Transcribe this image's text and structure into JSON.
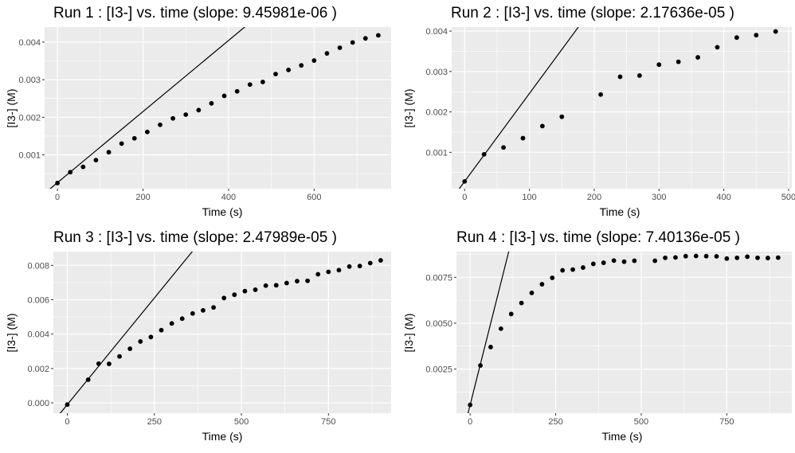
{
  "chart_data": [
    {
      "type": "scatter",
      "title": "Run  1 : [I3-] vs. time (slope:  9.45981e-06 )",
      "xlabel": "Time (s)",
      "ylabel": "[I3-] (M)",
      "xlim": [
        -30,
        780
      ],
      "ylim": [
        0.0001,
        0.0044
      ],
      "xticks": [
        0,
        200,
        400,
        600
      ],
      "yticks": [
        0.001,
        0.002,
        0.003,
        0.004
      ],
      "ytick_labels": [
        "0.001",
        "0.002",
        "0.003",
        "0.004"
      ],
      "grid": true,
      "points": {
        "x": [
          0,
          30,
          60,
          90,
          120,
          150,
          180,
          210,
          240,
          270,
          300,
          330,
          360,
          390,
          420,
          450,
          480,
          510,
          540,
          570,
          600,
          630,
          660,
          690,
          720,
          750
        ],
        "y": [
          0.00025,
          0.00054,
          0.00068,
          0.00086,
          0.00107,
          0.0013,
          0.00144,
          0.00161,
          0.0018,
          0.00197,
          0.00207,
          0.00219,
          0.00237,
          0.00257,
          0.00269,
          0.00287,
          0.00294,
          0.00315,
          0.00326,
          0.00338,
          0.00351,
          0.0037,
          0.00385,
          0.00399,
          0.0041,
          0.00418
        ]
      },
      "fit_line": {
        "slope": 9.45981e-06,
        "intercept": 0.00026
      }
    },
    {
      "type": "scatter",
      "title": "Run  2 : [I3-] vs. time (slope:  2.17636e-05 )",
      "xlabel": "Time (s)",
      "ylabel": "[I3-] (M)",
      "xlim": [
        -20,
        505
      ],
      "ylim": [
        0.0001,
        0.0041
      ],
      "xticks": [
        0,
        100,
        200,
        300,
        400,
        500
      ],
      "yticks": [
        0.001,
        0.002,
        0.003,
        0.004
      ],
      "ytick_labels": [
        "0.001",
        "0.002",
        "0.003",
        "0.004"
      ],
      "grid": true,
      "points": {
        "x": [
          0,
          30,
          60,
          90,
          120,
          150,
          210,
          240,
          270,
          300,
          330,
          360,
          390,
          420,
          450,
          480
        ],
        "y": [
          0.00028,
          0.00095,
          0.00112,
          0.00135,
          0.00165,
          0.00188,
          0.00243,
          0.00287,
          0.0029,
          0.00317,
          0.00324,
          0.00335,
          0.0036,
          0.00384,
          0.0039,
          0.00399
        ]
      },
      "fit_line": {
        "slope": 2.17636e-05,
        "intercept": 0.00028
      }
    },
    {
      "type": "scatter",
      "title": "Run  3 : [I3-] vs. time (slope:  2.47989e-05 )",
      "xlabel": "Time (s)",
      "ylabel": "[I3-] (M)",
      "xlim": [
        -40,
        930
      ],
      "ylim": [
        -0.0006,
        0.0088
      ],
      "xticks": [
        0,
        250,
        500,
        750
      ],
      "yticks": [
        0,
        0.002,
        0.004,
        0.006,
        0.008
      ],
      "ytick_labels": [
        "0.000",
        "0.002",
        "0.004",
        "0.006",
        "0.008"
      ],
      "grid": true,
      "points": {
        "x": [
          0,
          60,
          90,
          120,
          150,
          180,
          210,
          240,
          270,
          300,
          330,
          360,
          390,
          420,
          450,
          480,
          510,
          540,
          570,
          600,
          630,
          660,
          690,
          720,
          750,
          780,
          810,
          840,
          870,
          900
        ],
        "y": [
          -0.0001,
          0.00135,
          0.00228,
          0.00227,
          0.0027,
          0.00315,
          0.00357,
          0.00383,
          0.00423,
          0.00462,
          0.0049,
          0.0052,
          0.00538,
          0.00555,
          0.0061,
          0.00629,
          0.0065,
          0.00658,
          0.00682,
          0.00684,
          0.00697,
          0.00708,
          0.0071,
          0.00748,
          0.00762,
          0.00772,
          0.00793,
          0.00796,
          0.00813,
          0.00829
        ]
      },
      "fit_line": {
        "slope": 2.47989e-05,
        "intercept": -0.0001
      }
    },
    {
      "type": "scatter",
      "title": "Run  4 : [I3-] vs. time (slope:  7.40136e-05 )",
      "xlabel": "Time (s)",
      "ylabel": "[I3-] (M)",
      "xlim": [
        -40,
        940
      ],
      "ylim": [
        0.0001,
        0.0089
      ],
      "xticks": [
        0,
        250,
        500,
        750
      ],
      "yticks": [
        0.0025,
        0.005,
        0.0075
      ],
      "ytick_labels": [
        "0.0025",
        "0.0050",
        "0.0075"
      ],
      "grid": true,
      "points": {
        "x": [
          0,
          30,
          60,
          90,
          120,
          150,
          180,
          210,
          240,
          270,
          300,
          330,
          360,
          390,
          420,
          450,
          480,
          540,
          570,
          600,
          630,
          660,
          690,
          720,
          750,
          780,
          810,
          840,
          870,
          900
        ],
        "y": [
          0.00055,
          0.0027,
          0.0037,
          0.0047,
          0.0055,
          0.0061,
          0.00665,
          0.00712,
          0.00747,
          0.00788,
          0.00792,
          0.00803,
          0.00823,
          0.00829,
          0.00841,
          0.00835,
          0.0084,
          0.0084,
          0.00856,
          0.00858,
          0.00865,
          0.00866,
          0.00865,
          0.00864,
          0.00852,
          0.00856,
          0.00862,
          0.00856,
          0.00855,
          0.00857
        ]
      },
      "fit_line": {
        "slope": 7.40136e-05,
        "intercept": 0.00055
      }
    }
  ]
}
